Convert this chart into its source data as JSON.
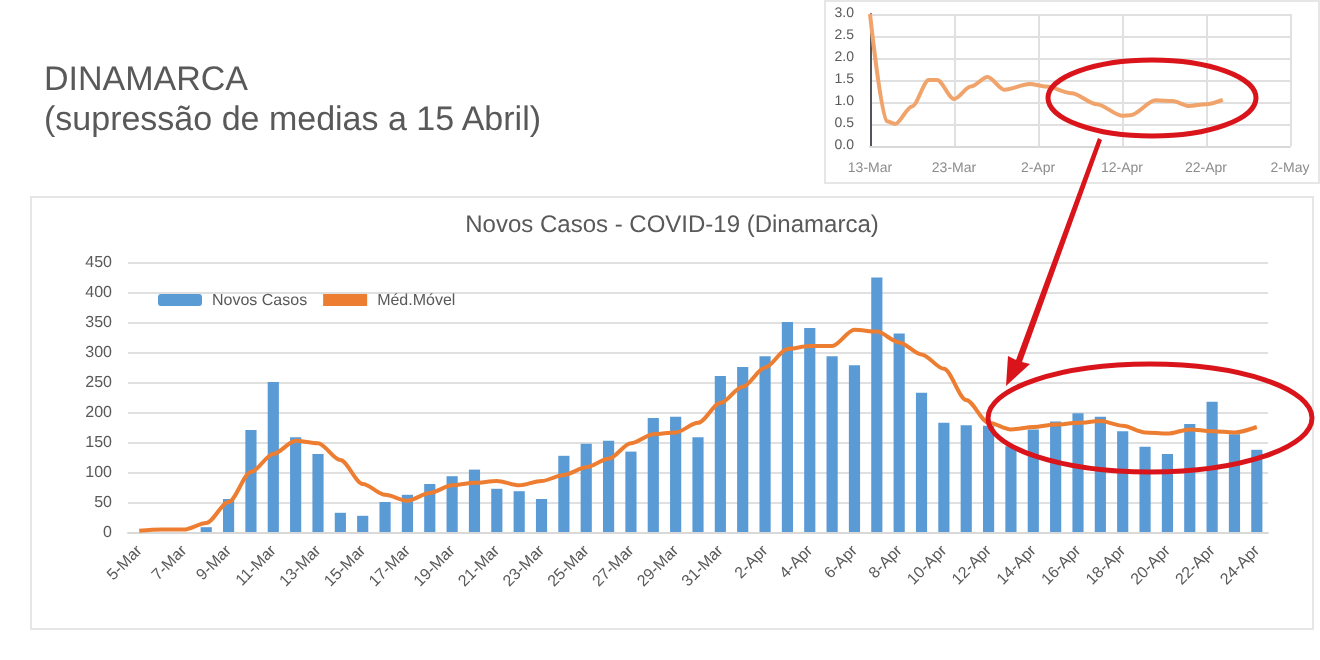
{
  "chart_data": [
    {
      "type": "other",
      "title": "DINAMARCA",
      "subtitle": "(supressão de medias a 15 Abril)"
    },
    {
      "type": "line",
      "x": [
        "--03-13",
        "--03-15",
        "--03-16",
        "--03-18",
        "--03-20",
        "--03-21",
        "--03-23",
        "--03-25",
        "--03-27",
        "--03-29",
        "--04-01",
        "--04-03",
        "--04-06",
        "--04-09",
        "--04-12",
        "--04-13",
        "--04-16",
        "--04-18",
        "--04-20",
        "--04-22",
        "--04-24"
      ],
      "series": [
        {
          "color": "#f0a36a",
          "values": [
            3.0,
            0.56,
            0.5,
            0.9,
            1.5,
            1.5,
            1.07,
            1.35,
            1.57,
            1.28,
            1.41,
            1.35,
            1.2,
            0.95,
            0.69,
            0.7,
            1.04,
            1.02,
            0.91,
            0.95,
            1.05
          ]
        }
      ],
      "xlim": [
        "--03-13",
        "--05-02"
      ],
      "xticks": [
        {
          "value": "--03-13",
          "label": "13-Mar"
        },
        {
          "value": "--03-23",
          "label": "23-Mar"
        },
        {
          "value": "--04-02",
          "label": "2-Apr"
        },
        {
          "value": "--04-12",
          "label": "12-Apr"
        },
        {
          "value": "--04-22",
          "label": "22-Apr"
        },
        {
          "value": "--05-02",
          "label": "2-May"
        }
      ],
      "ylim": [
        0,
        3
      ],
      "yticks": [
        {
          "value": 0,
          "label": "0.0"
        },
        {
          "value": 0.5,
          "label": "0.5"
        },
        {
          "value": 1,
          "label": "1.0"
        },
        {
          "value": 1.5,
          "label": "1.5"
        },
        {
          "value": 2,
          "label": "2.0"
        },
        {
          "value": 2.5,
          "label": "2.5"
        },
        {
          "value": 3,
          "label": "3.0"
        }
      ],
      "grid": true,
      "legend": false,
      "marker": "none"
    },
    {
      "type": "bar",
      "title": "Novos Casos - COVID-19 (Dinamarca)",
      "categories": [
        "5-Mar",
        null,
        "7-Mar",
        null,
        "9-Mar",
        null,
        "11-Mar",
        null,
        "13-Mar",
        null,
        "15-Mar",
        null,
        "17-Mar",
        null,
        "19-Mar",
        null,
        "21-Mar",
        null,
        "23-Mar",
        null,
        "25-Mar",
        null,
        "27-Mar",
        null,
        "29-Mar",
        null,
        "31-Mar",
        null,
        "2-Apr",
        null,
        "4-Apr",
        null,
        "6-Apr",
        null,
        "8-Apr",
        null,
        "10-Apr",
        null,
        "12-Apr",
        null,
        "14-Apr",
        null,
        "16-Apr",
        null,
        "18-Apr",
        null,
        "20-Apr",
        null,
        "22-Apr",
        null,
        "24-Apr"
      ],
      "series": [
        {
          "name": "Novos Casos",
          "type": "bar",
          "color": "#5b9bd5",
          "values": [
            0,
            0,
            0,
            8,
            55,
            170,
            250,
            158,
            130,
            32,
            27,
            50,
            62,
            80,
            93,
            104,
            72,
            68,
            55,
            127,
            147,
            152,
            134,
            190,
            192,
            158,
            260,
            275,
            293,
            350,
            340,
            293,
            278,
            424,
            331,
            232,
            182,
            178,
            177,
            143,
            171,
            184,
            198,
            192,
            168,
            142,
            130,
            180,
            217,
            163,
            137
          ]
        },
        {
          "name": "Méd.Móvel",
          "type": "line",
          "color": "#ed7d31",
          "values": [
            2,
            4,
            4,
            15,
            50,
            100,
            130,
            152,
            148,
            120,
            80,
            62,
            52,
            65,
            78,
            82,
            85,
            78,
            85,
            95,
            108,
            122,
            148,
            163,
            166,
            182,
            215,
            242,
            274,
            305,
            310,
            310,
            337,
            334,
            316,
            296,
            272,
            220,
            182,
            171,
            175,
            179,
            182,
            185,
            177,
            166,
            164,
            171,
            168,
            166,
            175
          ]
        }
      ],
      "ylim": [
        0,
        450
      ],
      "yticks": [
        0,
        50,
        100,
        150,
        200,
        250,
        300,
        350,
        400,
        450
      ],
      "grid": "y",
      "legend": "top left",
      "marker": "none"
    }
  ]
}
